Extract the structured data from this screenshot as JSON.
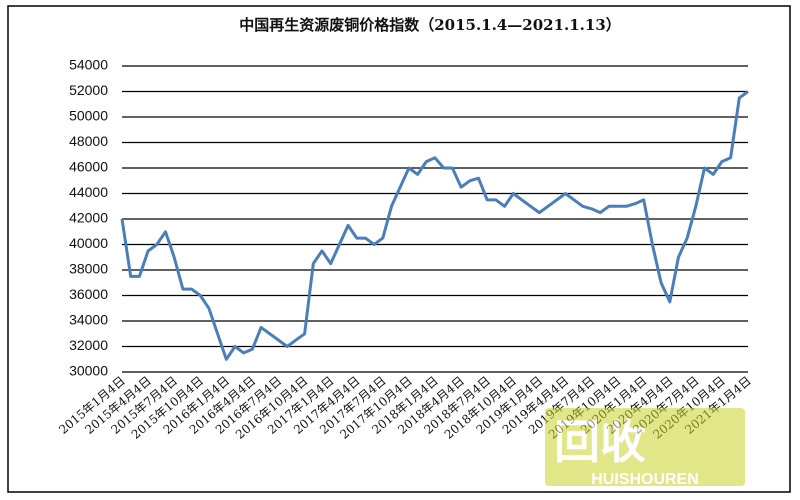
{
  "chart_data": {
    "type": "line",
    "title": "中国再生资源废铜价格指数（2015.1.4—2021.1.13）",
    "categories": [
      "2015年1月4日",
      null,
      null,
      "2015年4月4日",
      null,
      null,
      "2015年7月4日",
      null,
      null,
      "2015年10月4日",
      null,
      null,
      "2016年1月4日",
      null,
      null,
      "2016年4月4日",
      null,
      null,
      "2016年7月4日",
      null,
      null,
      "2016年10月4日",
      null,
      null,
      "2017年1月4日",
      null,
      null,
      "2017年4月4日",
      null,
      null,
      "2017年7月4日",
      null,
      null,
      "2017年10月4日",
      null,
      null,
      "2018年1月4日",
      null,
      null,
      "2018年4月4日",
      null,
      null,
      "2018年7月4日",
      null,
      null,
      "2018年10月4日",
      null,
      null,
      "2019年1月4日",
      null,
      null,
      "2019年4月4日",
      null,
      null,
      "2019年7月4日",
      null,
      null,
      "2019年10月4日",
      null,
      null,
      "2020年1月4日",
      null,
      null,
      "2020年4月4日",
      null,
      null,
      "2020年7月4日",
      null,
      null,
      "2020年10月4日",
      null,
      null,
      "2021年1月4日"
    ],
    "values": [
      42000,
      37500,
      37500,
      39500,
      40000,
      41000,
      39000,
      36500,
      36500,
      36000,
      35000,
      33000,
      31000,
      32000,
      31500,
      31800,
      33500,
      33000,
      32500,
      32000,
      32500,
      33000,
      38500,
      39500,
      38500,
      40000,
      41500,
      40500,
      40500,
      40000,
      40500,
      43000,
      44500,
      46000,
      45500,
      46500,
      46800,
      46000,
      46000,
      44500,
      45000,
      45200,
      43500,
      43500,
      43000,
      44000,
      43500,
      43000,
      42500,
      43000,
      43500,
      44000,
      43500,
      43000,
      42800,
      42500,
      43000,
      43000,
      43000,
      43200,
      43500,
      40000,
      37000,
      35500,
      39000,
      40500,
      43000,
      46000,
      45500,
      46500,
      46800,
      51500,
      52000
    ],
    "color": "#4a7ebb",
    "ylim": [
      30000,
      54000
    ],
    "yticks": [
      30000,
      32000,
      34000,
      36000,
      38000,
      40000,
      42000,
      44000,
      46000,
      48000,
      50000,
      52000,
      54000
    ],
    "grid": true
  },
  "watermark": {
    "text": "回收",
    "sub": "HUISHOUREN"
  }
}
